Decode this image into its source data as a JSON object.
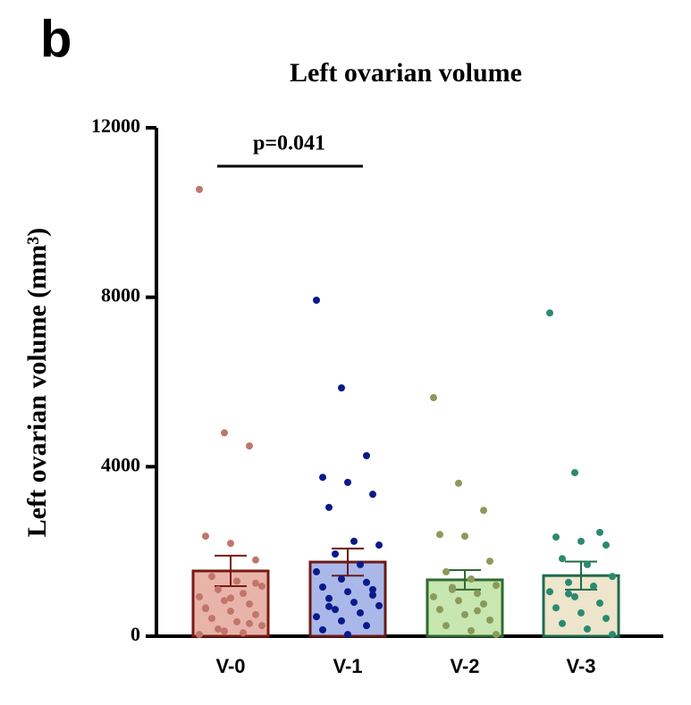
{
  "chart_data": {
    "type": "bar-scatter",
    "panel_label": "b",
    "title": "Left ovarian volume",
    "y_label": "Left ovarian volume (mm³)",
    "annotation": "p=0.041",
    "categories": [
      "V-0",
      "V-1",
      "V-2",
      "V-3"
    ],
    "values": [
      1540,
      1750,
      1330,
      1430
    ],
    "errors": [
      360,
      320,
      230,
      330
    ],
    "colors": [
      "#e8b4aa",
      "#a9b8e8",
      "#c8e6b0",
      "#ede5cc"
    ],
    "edge_colors": [
      "#7a1a14",
      "#6b1a1a",
      "#2f6b2f",
      "#1f6b4a"
    ],
    "point_colors": [
      "#c0766a",
      "#0a1a8a",
      "#8a9a5a",
      "#2a8a70"
    ],
    "points": [
      [
        10545,
        4800,
        4490,
        2360,
        2190,
        1800,
        1410,
        1300,
        1180,
        1100,
        1010,
        930,
        840,
        760,
        670,
        590,
        510,
        420,
        340,
        250,
        170,
        80,
        40,
        120,
        300,
        650,
        900,
        1250
      ],
      [
        7930,
        5860,
        4260,
        3750,
        3630,
        3350,
        3040,
        2240,
        2150,
        1940,
        1690,
        1520,
        1350,
        1270,
        1160,
        1050,
        970,
        890,
        800,
        720,
        630,
        550,
        460,
        360,
        250,
        150,
        40,
        1100,
        700
      ],
      [
        5630,
        3610,
        2970,
        2400,
        2360,
        1770,
        1520,
        1350,
        1200,
        1100,
        1010,
        930,
        840,
        760,
        630,
        510,
        380,
        250,
        130,
        40,
        1150,
        600
      ],
      [
        7630,
        3860,
        2450,
        2340,
        2240,
        2150,
        1830,
        1690,
        1410,
        1270,
        1180,
        1050,
        930,
        780,
        670,
        550,
        420,
        300,
        170,
        40,
        1000
      ]
    ],
    "ylim": [
      0,
      12000
    ],
    "yticks": [
      0,
      4000,
      8000,
      12000
    ]
  }
}
